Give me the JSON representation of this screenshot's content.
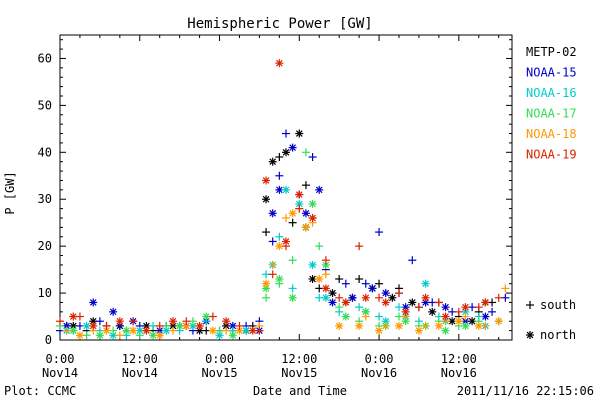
{
  "chart_data": {
    "type": "scatter",
    "title": "Hemispheric Power [GW]",
    "ylabel": "P [GW]",
    "xlabel": "Date and Time",
    "ylim": [
      0,
      65
    ],
    "yticks": [
      0,
      10,
      20,
      30,
      40,
      50,
      60
    ],
    "xlim_hours": [
      0,
      68
    ],
    "xticks": [
      {
        "hour": 0,
        "line1": "0:00",
        "line2": "Nov14"
      },
      {
        "hour": 12,
        "line1": "12:00",
        "line2": "Nov14"
      },
      {
        "hour": 24,
        "line1": "0:00",
        "line2": "Nov15"
      },
      {
        "hour": 36,
        "line1": "12:00",
        "line2": "Nov15"
      },
      {
        "hour": 48,
        "line1": "0:00",
        "line2": "Nov16"
      },
      {
        "hour": 60,
        "line1": "12:00",
        "line2": "Nov16"
      }
    ],
    "marker_legend": [
      {
        "symbol": "+",
        "label": "south"
      },
      {
        "symbol": "*",
        "label": "north"
      }
    ],
    "footer": {
      "left": "Plot: CCMC",
      "right": "2011/11/16 22:15:06"
    },
    "series": [
      {
        "name": "METP-02",
        "color": "#000000",
        "south": [
          [
            1,
            3
          ],
          [
            4,
            2
          ],
          [
            7,
            3
          ],
          [
            10,
            2
          ],
          [
            14,
            2
          ],
          [
            18,
            3
          ],
          [
            22,
            2
          ],
          [
            26,
            2
          ],
          [
            29,
            3
          ],
          [
            31,
            23
          ],
          [
            33,
            39
          ],
          [
            35,
            25
          ],
          [
            37,
            33
          ],
          [
            39,
            11
          ],
          [
            42,
            13
          ],
          [
            45,
            13
          ],
          [
            48,
            12
          ],
          [
            51,
            11
          ],
          [
            54,
            7
          ],
          [
            57,
            8
          ],
          [
            60,
            5
          ],
          [
            63,
            6
          ],
          [
            65,
            8
          ]
        ],
        "north": [
          [
            2,
            3
          ],
          [
            5,
            4
          ],
          [
            9,
            3
          ],
          [
            13,
            3
          ],
          [
            17,
            3
          ],
          [
            21,
            2
          ],
          [
            25,
            3
          ],
          [
            28,
            2
          ],
          [
            31,
            30
          ],
          [
            32,
            38
          ],
          [
            34,
            40
          ],
          [
            36,
            44
          ],
          [
            37,
            24
          ],
          [
            38,
            13
          ],
          [
            41,
            10
          ],
          [
            44,
            9
          ],
          [
            47,
            11
          ],
          [
            50,
            9
          ],
          [
            53,
            8
          ],
          [
            56,
            6
          ],
          [
            59,
            4
          ],
          [
            62,
            4
          ],
          [
            64,
            8
          ]
        ]
      },
      {
        "name": "NOAA-15",
        "color": "#0000cc",
        "south": [
          [
            0,
            2
          ],
          [
            3,
            3
          ],
          [
            6,
            4
          ],
          [
            9,
            3
          ],
          [
            12,
            3
          ],
          [
            16,
            3
          ],
          [
            20,
            2
          ],
          [
            24,
            2
          ],
          [
            28,
            3
          ],
          [
            30,
            4
          ],
          [
            32,
            21
          ],
          [
            33,
            35
          ],
          [
            34,
            44
          ],
          [
            36,
            31
          ],
          [
            38,
            39
          ],
          [
            40,
            15
          ],
          [
            43,
            12
          ],
          [
            46,
            12
          ],
          [
            48,
            23
          ],
          [
            51,
            10
          ],
          [
            53,
            17
          ],
          [
            56,
            8
          ],
          [
            59,
            6
          ],
          [
            62,
            7
          ],
          [
            65,
            6
          ],
          [
            67,
            9
          ]
        ],
        "north": [
          [
            1,
            3
          ],
          [
            5,
            8
          ],
          [
            8,
            6
          ],
          [
            11,
            4
          ],
          [
            15,
            2
          ],
          [
            19,
            3
          ],
          [
            22,
            4
          ],
          [
            26,
            3
          ],
          [
            30,
            2
          ],
          [
            32,
            27
          ],
          [
            33,
            32
          ],
          [
            35,
            41
          ],
          [
            37,
            27
          ],
          [
            39,
            32
          ],
          [
            41,
            8
          ],
          [
            44,
            9
          ],
          [
            47,
            11
          ],
          [
            49,
            10
          ],
          [
            52,
            7
          ],
          [
            55,
            8
          ],
          [
            58,
            7
          ],
          [
            61,
            4
          ],
          [
            64,
            5
          ]
        ]
      },
      {
        "name": "NOAA-16",
        "color": "#00cccc",
        "south": [
          [
            2,
            2
          ],
          [
            6,
            2
          ],
          [
            10,
            1
          ],
          [
            14,
            3
          ],
          [
            18,
            2
          ],
          [
            22,
            4
          ],
          [
            26,
            2
          ],
          [
            31,
            14
          ],
          [
            33,
            22
          ],
          [
            35,
            11
          ],
          [
            37,
            24
          ],
          [
            39,
            9
          ],
          [
            42,
            6
          ],
          [
            45,
            7
          ],
          [
            48,
            5
          ],
          [
            51,
            7
          ],
          [
            54,
            4
          ],
          [
            57,
            5
          ],
          [
            60,
            4
          ],
          [
            63,
            5
          ],
          [
            66,
            4
          ]
        ],
        "north": [
          [
            1,
            2
          ],
          [
            4,
            3
          ],
          [
            8,
            1
          ],
          [
            12,
            2
          ],
          [
            16,
            2
          ],
          [
            20,
            3
          ],
          [
            24,
            1
          ],
          [
            28,
            2
          ],
          [
            32,
            16
          ],
          [
            34,
            32
          ],
          [
            36,
            29
          ],
          [
            38,
            16
          ],
          [
            40,
            9
          ],
          [
            43,
            8
          ],
          [
            46,
            6
          ],
          [
            49,
            4
          ],
          [
            52,
            5
          ],
          [
            55,
            12
          ],
          [
            58,
            4
          ],
          [
            61,
            6
          ],
          [
            64,
            3
          ]
        ]
      },
      {
        "name": "NOAA-17",
        "color": "#33dd55",
        "south": [
          [
            0,
            3
          ],
          [
            4,
            1
          ],
          [
            8,
            2
          ],
          [
            12,
            1
          ],
          [
            16,
            3
          ],
          [
            20,
            4
          ],
          [
            24,
            2
          ],
          [
            31,
            9
          ],
          [
            33,
            12
          ],
          [
            35,
            17
          ],
          [
            37,
            40
          ],
          [
            39,
            20
          ],
          [
            42,
            7
          ],
          [
            45,
            4
          ],
          [
            48,
            3
          ],
          [
            51,
            5
          ],
          [
            54,
            3
          ],
          [
            57,
            4
          ],
          [
            60,
            3
          ],
          [
            63,
            4
          ]
        ],
        "north": [
          [
            2,
            2
          ],
          [
            6,
            1
          ],
          [
            10,
            2
          ],
          [
            14,
            1
          ],
          [
            18,
            3
          ],
          [
            22,
            5
          ],
          [
            26,
            1
          ],
          [
            31,
            11
          ],
          [
            33,
            13
          ],
          [
            35,
            9
          ],
          [
            38,
            29
          ],
          [
            40,
            16
          ],
          [
            43,
            5
          ],
          [
            46,
            6
          ],
          [
            49,
            3
          ],
          [
            52,
            4
          ],
          [
            55,
            3
          ],
          [
            58,
            2
          ],
          [
            61,
            3
          ]
        ]
      },
      {
        "name": "NOAA-18",
        "color": "#ff9900",
        "south": [
          [
            1,
            2
          ],
          [
            5,
            2
          ],
          [
            9,
            1
          ],
          [
            13,
            2
          ],
          [
            17,
            2
          ],
          [
            21,
            3
          ],
          [
            25,
            2
          ],
          [
            30,
            3
          ],
          [
            32,
            16
          ],
          [
            34,
            26
          ],
          [
            36,
            28
          ],
          [
            38,
            25
          ],
          [
            40,
            14
          ],
          [
            43,
            8
          ],
          [
            46,
            5
          ],
          [
            49,
            3
          ],
          [
            52,
            5
          ],
          [
            55,
            3
          ],
          [
            58,
            4
          ],
          [
            61,
            5
          ],
          [
            64,
            3
          ],
          [
            67,
            11
          ]
        ],
        "north": [
          [
            3,
            1
          ],
          [
            7,
            2
          ],
          [
            11,
            2
          ],
          [
            15,
            1
          ],
          [
            19,
            3
          ],
          [
            23,
            2
          ],
          [
            27,
            2
          ],
          [
            31,
            12
          ],
          [
            33,
            20
          ],
          [
            35,
            27
          ],
          [
            37,
            24
          ],
          [
            39,
            13
          ],
          [
            42,
            3
          ],
          [
            45,
            3
          ],
          [
            48,
            2
          ],
          [
            51,
            3
          ],
          [
            54,
            2
          ],
          [
            57,
            3
          ],
          [
            60,
            4
          ],
          [
            63,
            3
          ],
          [
            66,
            4
          ]
        ]
      },
      {
        "name": "NOAA-19",
        "color": "#dd2200",
        "south": [
          [
            0,
            4
          ],
          [
            3,
            5
          ],
          [
            7,
            3
          ],
          [
            11,
            4
          ],
          [
            15,
            3
          ],
          [
            19,
            4
          ],
          [
            23,
            5
          ],
          [
            27,
            3
          ],
          [
            30,
            2
          ],
          [
            32,
            14
          ],
          [
            34,
            20
          ],
          [
            36,
            28
          ],
          [
            38,
            26
          ],
          [
            40,
            17
          ],
          [
            42,
            9
          ],
          [
            45,
            20
          ],
          [
            48,
            9
          ],
          [
            51,
            10
          ],
          [
            54,
            7
          ],
          [
            57,
            8
          ],
          [
            60,
            6
          ],
          [
            63,
            7
          ],
          [
            66,
            9
          ]
        ],
        "north": [
          [
            2,
            5
          ],
          [
            5,
            3
          ],
          [
            9,
            4
          ],
          [
            13,
            2
          ],
          [
            17,
            4
          ],
          [
            21,
            3
          ],
          [
            25,
            4
          ],
          [
            29,
            2
          ],
          [
            31,
            34
          ],
          [
            33,
            59
          ],
          [
            34,
            21
          ],
          [
            36,
            31
          ],
          [
            38,
            26
          ],
          [
            40,
            11
          ],
          [
            43,
            8
          ],
          [
            46,
            9
          ],
          [
            49,
            8
          ],
          [
            52,
            6
          ],
          [
            55,
            9
          ],
          [
            58,
            5
          ],
          [
            61,
            7
          ],
          [
            64,
            8
          ]
        ]
      }
    ]
  }
}
